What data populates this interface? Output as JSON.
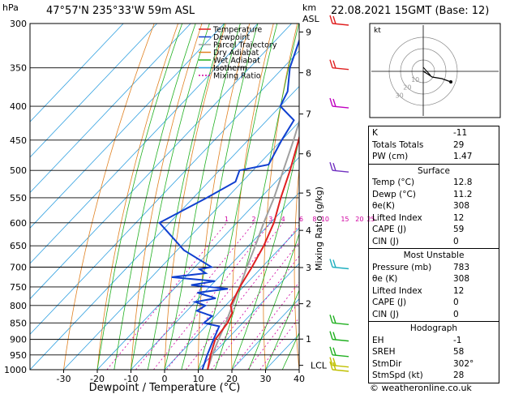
{
  "header": {
    "location": "47°57'N  235°33'W  59m  ASL",
    "datetime": "22.08.2021  15GMT  (Base: 12)",
    "hpa_unit": "hPa",
    "km_unit": "km",
    "asl_unit": "ASL"
  },
  "chart_data": {
    "type": "skew-t",
    "xlabel": "Dewpoint / Temperature (°C)",
    "ylabel": "hPa",
    "mixing_axis_label": "Mixing Ratio (g/kg)",
    "x_ticks": [
      -30,
      -20,
      -10,
      0,
      10,
      20,
      30,
      40
    ],
    "pressure_levels": [
      300,
      350,
      400,
      450,
      500,
      550,
      600,
      650,
      700,
      750,
      800,
      850,
      900,
      950,
      1000
    ],
    "km_ticks": [
      {
        "label": "9",
        "p": 309
      },
      {
        "label": "8",
        "p": 356
      },
      {
        "label": "7",
        "p": 411
      },
      {
        "label": "6",
        "p": 472
      },
      {
        "label": "5",
        "p": 541
      },
      {
        "label": "4",
        "p": 616
      },
      {
        "label": "3",
        "p": 701
      },
      {
        "label": "2",
        "p": 795
      },
      {
        "label": "1",
        "p": 899
      },
      {
        "label": "LCL",
        "p": 985
      }
    ],
    "mixing_ratio_labels": [
      "1",
      "2",
      "3",
      "4",
      "6",
      "8",
      "10",
      "15",
      "20",
      "25"
    ],
    "legend": [
      {
        "name": "Temperature",
        "color": "#e02020"
      },
      {
        "name": "Dewpoint",
        "color": "#1040d0"
      },
      {
        "name": "Parcel Trajectory",
        "color": "#a0a0a0"
      },
      {
        "name": "Dry Adiabat",
        "color": "#e08020"
      },
      {
        "name": "Wet Adiabat",
        "color": "#20b020"
      },
      {
        "name": "Isotherm",
        "color": "#30a0e0"
      },
      {
        "name": "Mixing Ratio",
        "color": "#d000a0"
      }
    ],
    "temperature": [
      [
        1000,
        12.8
      ],
      [
        950,
        9.5
      ],
      [
        900,
        6.5
      ],
      [
        850,
        5.5
      ],
      [
        820,
        4
      ],
      [
        800,
        1.5
      ],
      [
        750,
        -1
      ],
      [
        700,
        -3
      ],
      [
        650,
        -5.5
      ],
      [
        600,
        -9
      ],
      [
        550,
        -14
      ],
      [
        500,
        -19
      ],
      [
        450,
        -25
      ],
      [
        400,
        -32
      ],
      [
        350,
        -39
      ],
      [
        300,
        -47
      ]
    ],
    "dewpoint": [
      [
        1000,
        11.2
      ],
      [
        950,
        8.5
      ],
      [
        900,
        6
      ],
      [
        860,
        4
      ],
      [
        850,
        -1.5
      ],
      [
        830,
        -1
      ],
      [
        815,
        -7
      ],
      [
        800,
        -6
      ],
      [
        790,
        -10
      ],
      [
        780,
        -5
      ],
      [
        765,
        -12
      ],
      [
        755,
        -4
      ],
      [
        745,
        -16
      ],
      [
        735,
        -10
      ],
      [
        725,
        -24
      ],
      [
        715,
        -15
      ],
      [
        705,
        -18
      ],
      [
        700,
        -15
      ],
      [
        660,
        -28
      ],
      [
        600,
        -43
      ],
      [
        550,
        -36
      ],
      [
        520,
        -32
      ],
      [
        500,
        -34
      ],
      [
        490,
        -27
      ],
      [
        450,
        -30
      ],
      [
        420,
        -32
      ],
      [
        400,
        -40
      ],
      [
        380,
        -42
      ],
      [
        350,
        -48
      ],
      [
        300,
        -56
      ]
    ],
    "parcel": [
      [
        1000,
        12.8
      ],
      [
        950,
        10
      ],
      [
        900,
        7.5
      ],
      [
        850,
        5
      ],
      [
        800,
        2
      ],
      [
        750,
        -1
      ],
      [
        700,
        -4.5
      ],
      [
        650,
        -8
      ],
      [
        600,
        -12
      ],
      [
        550,
        -16
      ],
      [
        500,
        -21
      ],
      [
        450,
        -26.5
      ],
      [
        400,
        -33
      ],
      [
        350,
        -40
      ],
      [
        300,
        -48
      ]
    ],
    "winds": [
      {
        "p": 300,
        "color": "#e02020"
      },
      {
        "p": 350,
        "color": "#e02020"
      },
      {
        "p": 400,
        "color": "#c000c0"
      },
      {
        "p": 500,
        "color": "#7030c0"
      },
      {
        "p": 700,
        "color": "#20b0c0"
      },
      {
        "p": 850,
        "color": "#20b020"
      },
      {
        "p": 900,
        "color": "#20b020"
      },
      {
        "p": 950,
        "color": "#20b020"
      },
      {
        "p": 985,
        "color": "#c0c000"
      },
      {
        "p": 1000,
        "color": "#c0c000"
      }
    ],
    "hodograph": {
      "label": "kt",
      "ring_labels": [
        "10",
        "20",
        "30"
      ]
    }
  },
  "indices": {
    "k_label": "K",
    "k_value": "-11",
    "tt_label": "Totals Totals",
    "tt_value": "29",
    "pw_label": "PW (cm)",
    "pw_value": "1.47"
  },
  "surface": {
    "title": "Surface",
    "temp_label": "Temp (°C)",
    "temp_value": "12.8",
    "dewp_label": "Dewp (°C)",
    "dewp_value": "11.2",
    "theta_label": "θe(K)",
    "theta_value": "308",
    "li_label": "Lifted Index",
    "li_value": "12",
    "cape_label": "CAPE (J)",
    "cape_value": "59",
    "cin_label": "CIN (J)",
    "cin_value": "0"
  },
  "most_unstable": {
    "title": "Most Unstable",
    "pres_label": "Pressure (mb)",
    "pres_value": "783",
    "theta_label": "θe (K)",
    "theta_value": "308",
    "li_label": "Lifted Index",
    "li_value": "12",
    "cape_label": "CAPE (J)",
    "cape_value": "0",
    "cin_label": "CIN (J)",
    "cin_value": "0"
  },
  "hodograph_box": {
    "title": "Hodograph",
    "eh_label": "EH",
    "eh_value": "-1",
    "sreh_label": "SREH",
    "sreh_value": "58",
    "stmdir_label": "StmDir",
    "stmdir_value": "302°",
    "stmspd_label": "StmSpd (kt)",
    "stmspd_value": "28"
  },
  "footer": {
    "credit": "© weatheronline.co.uk"
  }
}
